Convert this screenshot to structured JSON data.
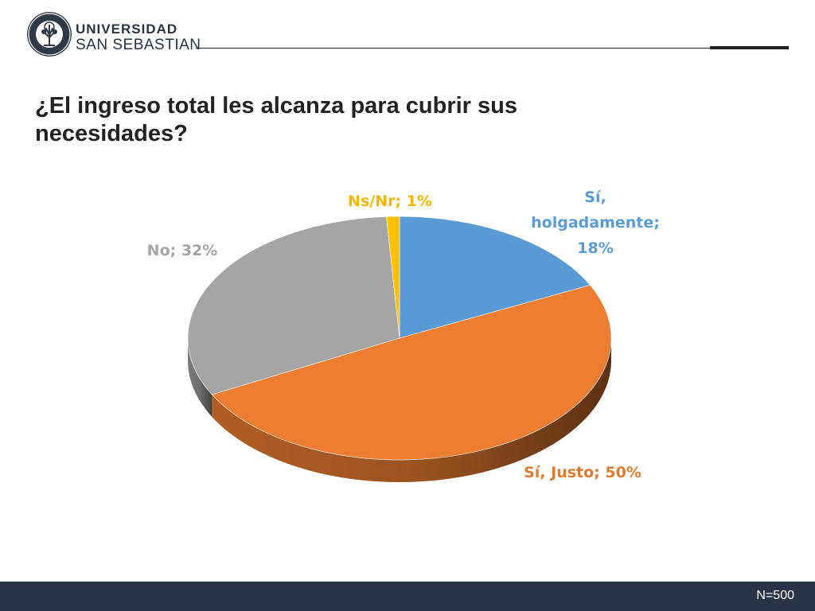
{
  "header": {
    "logo_line1": "UNIVERSIDAD",
    "logo_line2": "SAN SEBASTIAN",
    "seal_text": "CIENCIA · CULTURA · EMPRENDER"
  },
  "title": "¿El ingreso total les alcanza para cubrir sus necesidades?",
  "footer": {
    "note": "N=500"
  },
  "colors": {
    "holgadamente": "#5b9bd5",
    "justo": "#ed7d31",
    "no": "#a5a5a5",
    "nsnr": "#ffc000"
  },
  "chart_data": {
    "type": "pie",
    "style": "3d",
    "slices": [
      {
        "label": "Sí, holgadamente",
        "value": 18,
        "display": [
          "Sí,",
          "holgadamente;",
          "18%"
        ],
        "color": "#5b9bd5",
        "label_color": "#5b9bd5"
      },
      {
        "label": "Sí, Justo",
        "value": 50,
        "display": [
          "Sí, Justo; 50%"
        ],
        "color": "#ed7d31",
        "label_color": "#e07a2e"
      },
      {
        "label": "No",
        "value": 32,
        "display": [
          "No; 32%"
        ],
        "color": "#a5a5a5",
        "label_color": "#a5a5a5"
      },
      {
        "label": "Ns/Nr",
        "value": 1,
        "display": [
          "Ns/Nr; 1%"
        ],
        "color": "#ffc000",
        "label_color": "#f2b800"
      }
    ],
    "start_slice_at": "top",
    "direction": "clockwise"
  }
}
